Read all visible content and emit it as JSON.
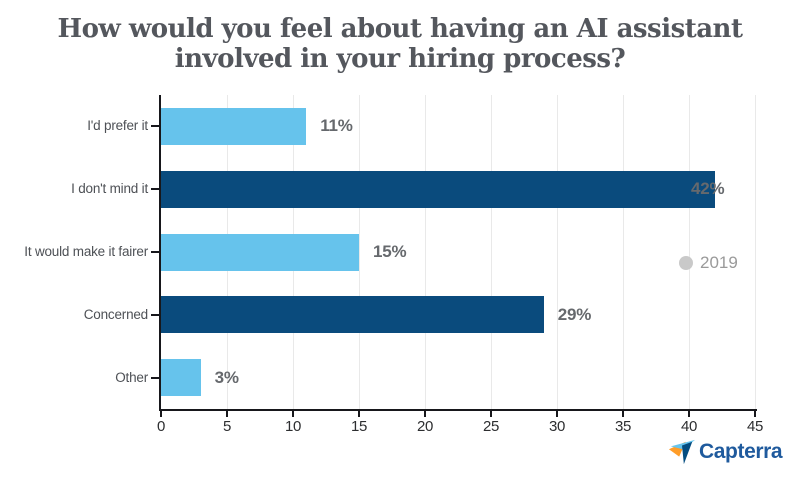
{
  "title": {
    "lines": [
      "How would you feel about having an AI assistant",
      "involved in your hiring process?"
    ]
  },
  "legend": {
    "label": "2019"
  },
  "footer": {
    "brand": "Capterra"
  },
  "colors": {
    "bar_light": "#66c3ec",
    "bar_dark": "#0a4b7d",
    "axis": "#17171b",
    "grid": "#e9e9e9",
    "title_text": "#54575d",
    "category_text": "#4e5156",
    "value_text": "#66696d",
    "tick_text": "#2d2e30",
    "legend_marker": "#c9c9c9",
    "legend_text": "#9a9a9a",
    "brand_blue": "#1f5a9d",
    "logo_orange": "#ff9d28",
    "logo_lightblue": "#68c5ed",
    "logo_navy": "#044d80"
  },
  "chart_data": {
    "type": "bar",
    "orientation": "horizontal",
    "title": "How would you feel about having an AI assistant involved in your hiring process?",
    "categories": [
      "I'd prefer it",
      "I don't mind it",
      "It would make it fairer",
      "Concerned",
      "Other"
    ],
    "series": [
      {
        "name": "2019",
        "values": [
          11,
          42,
          15,
          29,
          3
        ]
      }
    ],
    "value_labels": [
      "11%",
      "42%",
      "15%",
      "29%",
      "3%"
    ],
    "bar_colors": [
      "#66c3ec",
      "#0a4b7d",
      "#66c3ec",
      "#0a4b7d",
      "#66c3ec"
    ],
    "xlim": [
      0,
      45
    ],
    "x_ticks": [
      0,
      5,
      10,
      15,
      20,
      25,
      30,
      35,
      40,
      45
    ],
    "x_tick_labels": [
      "0",
      "5",
      "10",
      "15",
      "20",
      "25",
      "30",
      "35",
      "40",
      "45"
    ],
    "grid": "vertical-light",
    "legend_position": "right-middle"
  }
}
